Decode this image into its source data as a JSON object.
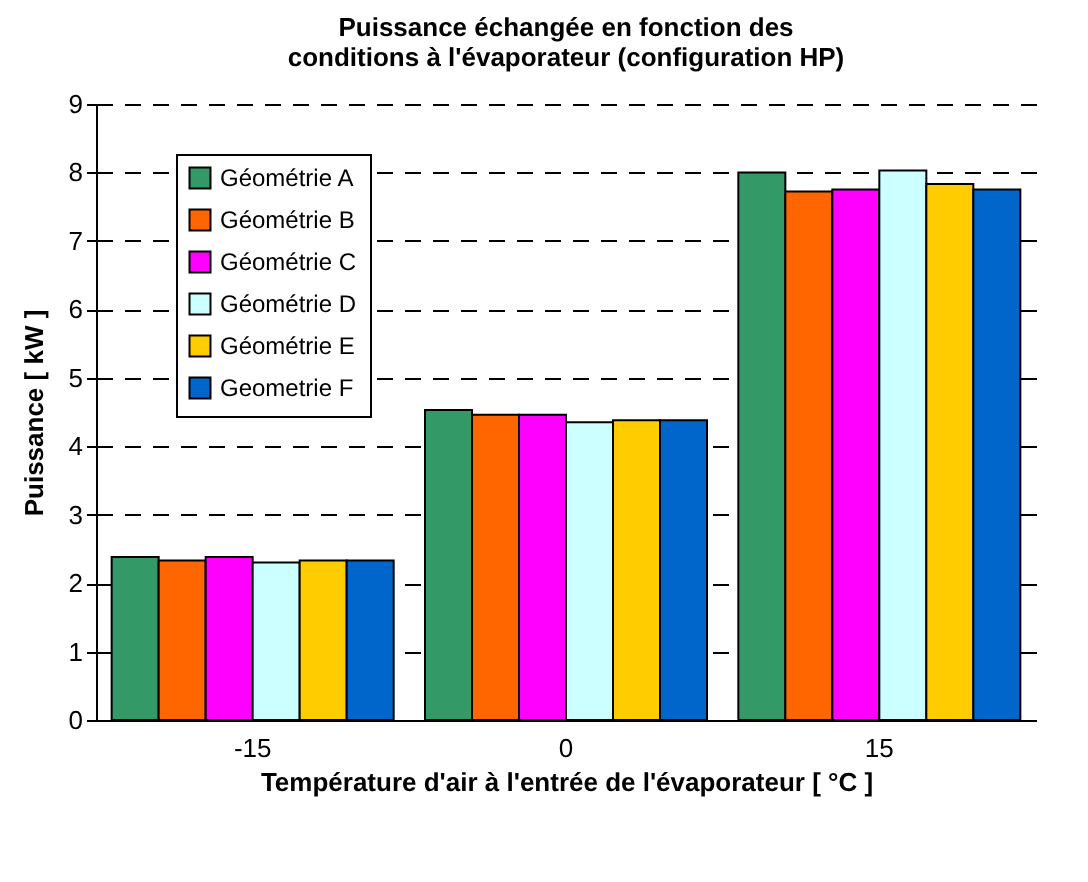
{
  "chart_data": {
    "type": "bar",
    "title": "Puissance échangée en fonction des conditions à l'évaporateur (configuration HP)",
    "xlabel": "Température d'air à l'entrée de l'évaporateur [ °C ]",
    "ylabel": "Puissance [ kW ]",
    "categories": [
      "-15",
      "0",
      "15"
    ],
    "series": [
      {
        "name": "Géométrie A",
        "color": "#339966",
        "values": [
          2.38,
          4.53,
          8.0
        ]
      },
      {
        "name": "Géométrie B",
        "color": "#ff6600",
        "values": [
          2.33,
          4.46,
          7.72
        ]
      },
      {
        "name": "Géométrie C",
        "color": "#ff00ff",
        "values": [
          2.38,
          4.46,
          7.75
        ]
      },
      {
        "name": "Géométrie D",
        "color": "#ccffff",
        "values": [
          2.3,
          4.35,
          8.03
        ]
      },
      {
        "name": "Géométrie E",
        "color": "#ffcc00",
        "values": [
          2.33,
          4.38,
          7.83
        ]
      },
      {
        "name": "Geometrie F",
        "color": "#0066cc",
        "values": [
          2.33,
          4.38,
          7.75
        ]
      }
    ],
    "ylim": [
      0,
      9
    ],
    "yticks": [
      0,
      1,
      2,
      3,
      4,
      5,
      6,
      7,
      8,
      9
    ],
    "grid": "y",
    "legend": "top left"
  }
}
